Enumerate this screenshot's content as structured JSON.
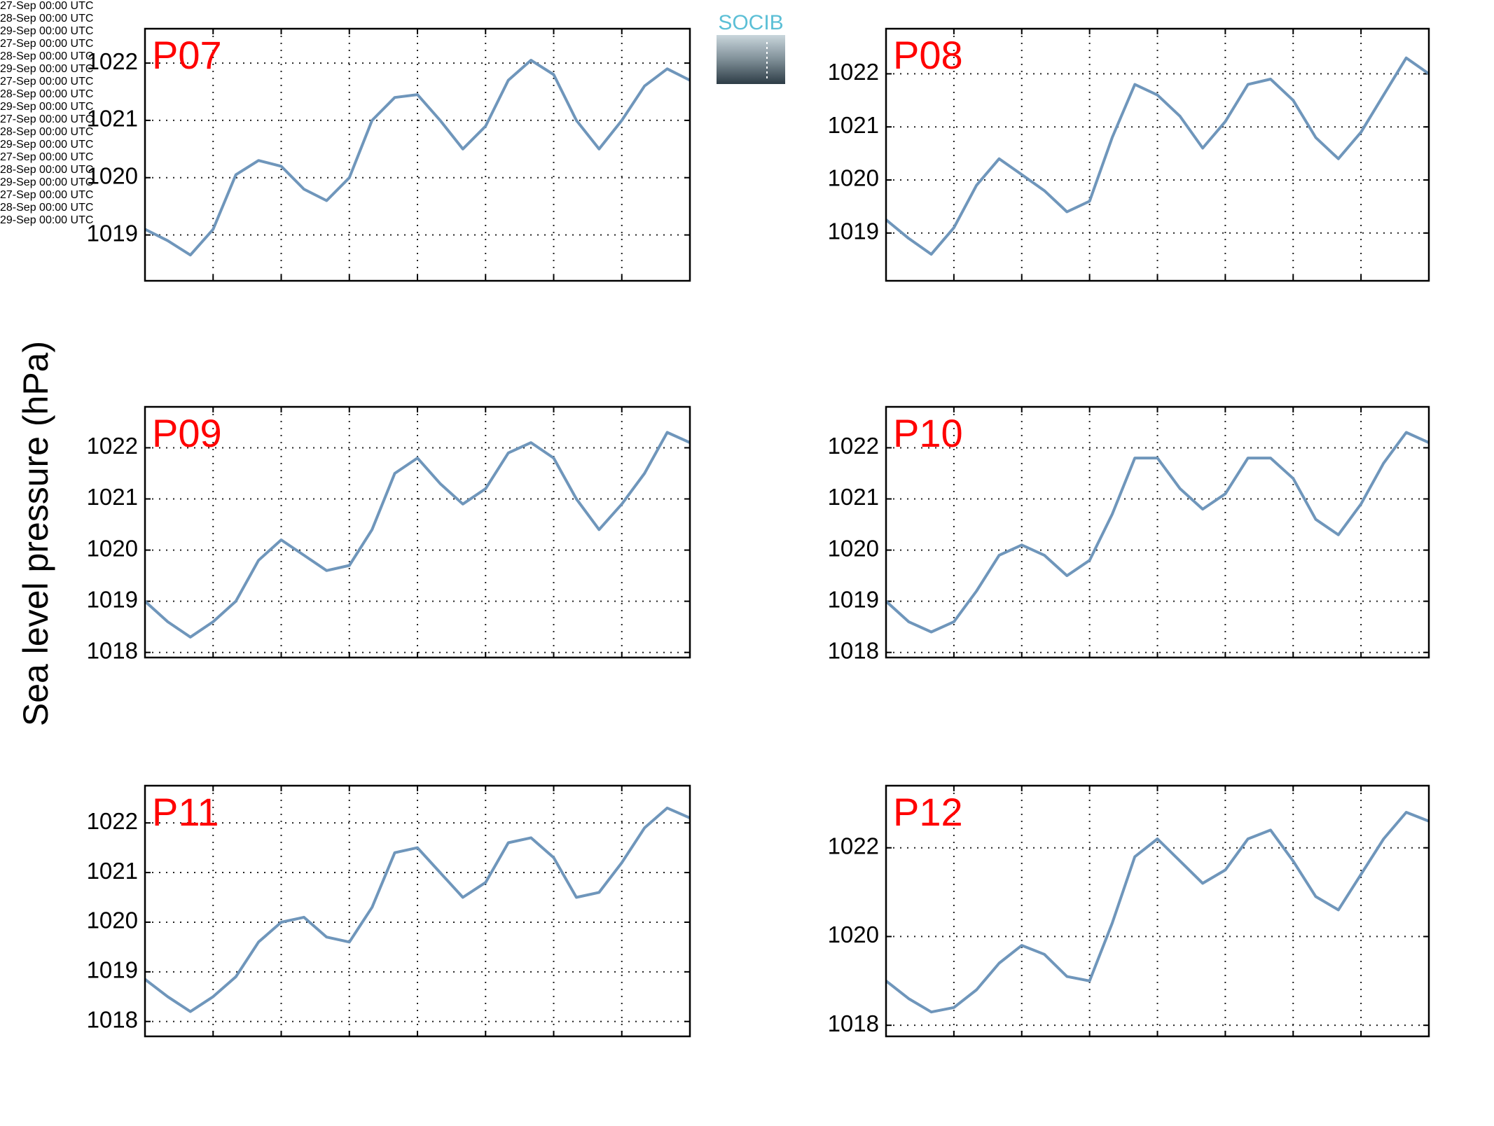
{
  "ylabel": "Sea level pressure (hPa)",
  "logo": "SOCIB",
  "chart_data": [
    {
      "type": "line",
      "title": "P07",
      "color": "#6f96bb",
      "grid": true,
      "x": [
        0,
        2,
        4,
        6,
        8,
        10,
        12,
        14,
        16,
        18,
        20,
        22,
        24,
        26,
        28,
        30,
        32,
        34,
        36,
        38,
        40,
        42,
        44,
        46,
        48
      ],
      "values": [
        1019.1,
        1018.9,
        1018.65,
        1019.1,
        1020.05,
        1020.3,
        1020.2,
        1019.8,
        1019.6,
        1020.0,
        1021.0,
        1021.4,
        1021.45,
        1021.0,
        1020.5,
        1020.9,
        1021.7,
        1022.05,
        1021.8,
        1021.0,
        1020.5,
        1021.0,
        1021.6,
        1021.9,
        1021.7
      ],
      "xlim": [
        0,
        48
      ],
      "xticks": [
        {
          "value": 0,
          "label": "27-Sep\n00:00 UTC"
        },
        {
          "value": 24,
          "label": "28-Sep\n00:00 UTC"
        },
        {
          "value": 48,
          "label": "29-Sep\n00:00 UTC"
        }
      ],
      "xgrid": [
        6,
        12,
        18,
        24,
        30,
        36,
        42
      ],
      "ylim": [
        1018.2,
        1022.6
      ],
      "yticks": [
        1019,
        1020,
        1021,
        1022
      ]
    },
    {
      "type": "line",
      "title": "P08",
      "color": "#6f96bb",
      "grid": true,
      "x": [
        0,
        2,
        4,
        6,
        8,
        10,
        12,
        14,
        16,
        18,
        20,
        22,
        24,
        26,
        28,
        30,
        32,
        34,
        36,
        38,
        40,
        42,
        44,
        46,
        48
      ],
      "values": [
        1019.25,
        1018.9,
        1018.6,
        1019.1,
        1019.9,
        1020.4,
        1020.1,
        1019.8,
        1019.4,
        1019.6,
        1020.8,
        1021.8,
        1021.6,
        1021.2,
        1020.6,
        1021.1,
        1021.8,
        1021.9,
        1021.5,
        1020.8,
        1020.4,
        1020.9,
        1021.6,
        1022.3,
        1022.0
      ],
      "xlim": [
        0,
        48
      ],
      "xticks": [
        {
          "value": 0,
          "label": "27-Sep\n00:00 UTC"
        },
        {
          "value": 24,
          "label": "28-Sep\n00:00 UTC"
        },
        {
          "value": 48,
          "label": "29-Sep\n00:00 UTC"
        }
      ],
      "xgrid": [
        6,
        12,
        18,
        24,
        30,
        36,
        42
      ],
      "ylim": [
        1018.1,
        1022.85
      ],
      "yticks": [
        1019,
        1020,
        1021,
        1022
      ]
    },
    {
      "type": "line",
      "title": "P09",
      "color": "#6f96bb",
      "grid": true,
      "x": [
        0,
        2,
        4,
        6,
        8,
        10,
        12,
        14,
        16,
        18,
        20,
        22,
        24,
        26,
        28,
        30,
        32,
        34,
        36,
        38,
        40,
        42,
        44,
        46,
        48
      ],
      "values": [
        1019.0,
        1018.6,
        1018.3,
        1018.6,
        1019.0,
        1019.8,
        1020.2,
        1019.9,
        1019.6,
        1019.7,
        1020.4,
        1021.5,
        1021.8,
        1021.3,
        1020.9,
        1021.2,
        1021.9,
        1022.1,
        1021.8,
        1021.0,
        1020.4,
        1020.9,
        1021.5,
        1022.3,
        1022.1
      ],
      "xlim": [
        0,
        48
      ],
      "xticks": [
        {
          "value": 0,
          "label": "27-Sep\n00:00 UTC"
        },
        {
          "value": 24,
          "label": "28-Sep\n00:00 UTC"
        },
        {
          "value": 48,
          "label": "29-Sep\n00:00 UTC"
        }
      ],
      "xgrid": [
        6,
        12,
        18,
        24,
        30,
        36,
        42
      ],
      "ylim": [
        1017.9,
        1022.8
      ],
      "yticks": [
        1018,
        1019,
        1020,
        1021,
        1022
      ]
    },
    {
      "type": "line",
      "title": "P10",
      "color": "#6f96bb",
      "grid": true,
      "x": [
        0,
        2,
        4,
        6,
        8,
        10,
        12,
        14,
        16,
        18,
        20,
        22,
        24,
        26,
        28,
        30,
        32,
        34,
        36,
        38,
        40,
        42,
        44,
        46,
        48
      ],
      "values": [
        1019.0,
        1018.6,
        1018.4,
        1018.6,
        1019.2,
        1019.9,
        1020.1,
        1019.9,
        1019.5,
        1019.8,
        1020.7,
        1021.8,
        1021.8,
        1021.2,
        1020.8,
        1021.1,
        1021.8,
        1021.8,
        1021.4,
        1020.6,
        1020.3,
        1020.9,
        1021.7,
        1022.3,
        1022.1
      ],
      "xlim": [
        0,
        48
      ],
      "xticks": [
        {
          "value": 0,
          "label": "27-Sep\n00:00 UTC"
        },
        {
          "value": 24,
          "label": "28-Sep\n00:00 UTC"
        },
        {
          "value": 48,
          "label": "29-Sep\n00:00 UTC"
        }
      ],
      "xgrid": [
        6,
        12,
        18,
        24,
        30,
        36,
        42
      ],
      "ylim": [
        1017.9,
        1022.8
      ],
      "yticks": [
        1018,
        1019,
        1020,
        1021,
        1022
      ]
    },
    {
      "type": "line",
      "title": "P11",
      "color": "#6f96bb",
      "grid": true,
      "x": [
        0,
        2,
        4,
        6,
        8,
        10,
        12,
        14,
        16,
        18,
        20,
        22,
        24,
        26,
        28,
        30,
        32,
        34,
        36,
        38,
        40,
        42,
        44,
        46,
        48
      ],
      "values": [
        1018.85,
        1018.5,
        1018.2,
        1018.5,
        1018.9,
        1019.6,
        1020.0,
        1020.1,
        1019.7,
        1019.6,
        1020.3,
        1021.4,
        1021.5,
        1021.0,
        1020.5,
        1020.8,
        1021.6,
        1021.7,
        1021.3,
        1020.5,
        1020.6,
        1021.2,
        1021.9,
        1022.3,
        1022.1
      ],
      "xlim": [
        0,
        48
      ],
      "xticks": [
        {
          "value": 0,
          "label": "27-Sep\n00:00 UTC"
        },
        {
          "value": 24,
          "label": "28-Sep\n00:00 UTC"
        },
        {
          "value": 48,
          "label": "29-Sep\n00:00 UTC"
        }
      ],
      "xgrid": [
        6,
        12,
        18,
        24,
        30,
        36,
        42
      ],
      "ylim": [
        1017.7,
        1022.75
      ],
      "yticks": [
        1018,
        1019,
        1020,
        1021,
        1022
      ]
    },
    {
      "type": "line",
      "title": "P12",
      "color": "#6f96bb",
      "grid": true,
      "x": [
        0,
        2,
        4,
        6,
        8,
        10,
        12,
        14,
        16,
        18,
        20,
        22,
        24,
        26,
        28,
        30,
        32,
        34,
        36,
        38,
        40,
        42,
        44,
        46,
        48
      ],
      "values": [
        1019.0,
        1018.6,
        1018.3,
        1018.4,
        1018.8,
        1019.4,
        1019.8,
        1019.6,
        1019.1,
        1019.0,
        1020.3,
        1021.8,
        1022.2,
        1021.7,
        1021.2,
        1021.5,
        1022.2,
        1022.4,
        1021.7,
        1020.9,
        1020.6,
        1021.4,
        1022.2,
        1022.8,
        1022.6
      ],
      "xlim": [
        0,
        48
      ],
      "xticks": [
        {
          "value": 0,
          "label": "27-Sep\n00:00 UTC"
        },
        {
          "value": 24,
          "label": "28-Sep\n00:00 UTC"
        },
        {
          "value": 48,
          "label": "29-Sep\n00:00 UTC"
        }
      ],
      "xgrid": [
        6,
        12,
        18,
        24,
        30,
        36,
        42
      ],
      "ylim": [
        1017.75,
        1023.4
      ],
      "yticks": [
        1018,
        1020,
        1022
      ]
    }
  ]
}
